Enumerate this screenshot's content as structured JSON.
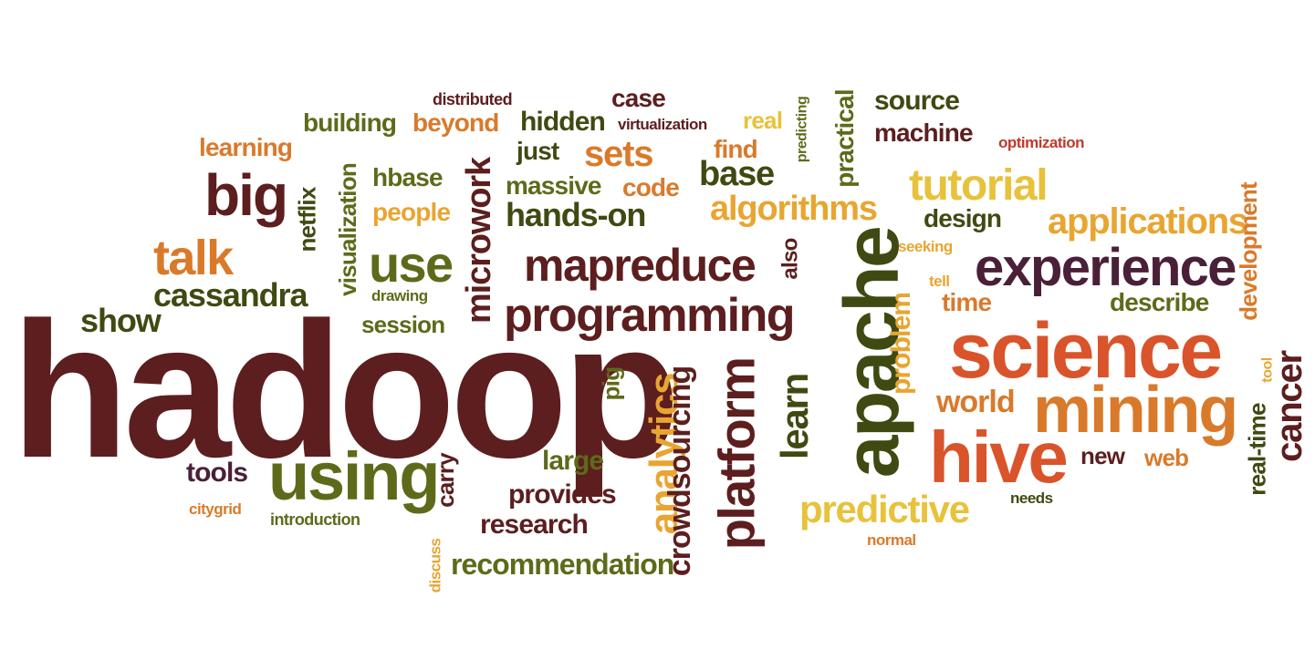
{
  "colors": {
    "maroon": "#5c1e1e",
    "plum": "#4a2038",
    "olive": "#5e6a1a",
    "darkolive": "#3f4a12",
    "orange": "#d97a2b",
    "amber": "#e8a531",
    "gold": "#e7c23a",
    "rust": "#d9542a",
    "red": "#c0392b"
  },
  "words": [
    {
      "text": "hadoop",
      "color": "maroon"
    },
    {
      "text": "science",
      "color": "rust"
    },
    {
      "text": "apache",
      "color": "darkolive"
    },
    {
      "text": "experience",
      "color": "plum"
    },
    {
      "text": "mining",
      "color": "orange"
    },
    {
      "text": "hive",
      "color": "rust"
    },
    {
      "text": "using",
      "color": "olive"
    },
    {
      "text": "programming",
      "color": "maroon"
    },
    {
      "text": "mapreduce",
      "color": "maroon"
    },
    {
      "text": "big",
      "color": "maroon"
    },
    {
      "text": "talk",
      "color": "orange"
    },
    {
      "text": "use",
      "color": "olive"
    },
    {
      "text": "tutorial",
      "color": "gold"
    },
    {
      "text": "platform",
      "color": "maroon"
    },
    {
      "text": "analytics",
      "color": "amber"
    },
    {
      "text": "crowdsourcing",
      "color": "maroon"
    },
    {
      "text": "applications",
      "color": "amber"
    },
    {
      "text": "predictive",
      "color": "gold"
    },
    {
      "text": "algorithms",
      "color": "amber"
    },
    {
      "text": "hands-on",
      "color": "darkolive"
    },
    {
      "text": "cassandra",
      "color": "darkolive"
    },
    {
      "text": "microwork",
      "color": "maroon"
    },
    {
      "text": "learn",
      "color": "darkolive"
    },
    {
      "text": "sets",
      "color": "orange"
    },
    {
      "text": "base",
      "color": "darkolive"
    },
    {
      "text": "show",
      "color": "darkolive"
    },
    {
      "text": "research",
      "color": "maroon"
    },
    {
      "text": "recommendation",
      "color": "olive"
    },
    {
      "text": "provides",
      "color": "maroon"
    },
    {
      "text": "large",
      "color": "olive"
    },
    {
      "text": "tools",
      "color": "plum"
    },
    {
      "text": "world",
      "color": "orange"
    },
    {
      "text": "problem",
      "color": "amber"
    },
    {
      "text": "cancer",
      "color": "maroon"
    },
    {
      "text": "development",
      "color": "orange"
    },
    {
      "text": "real-time",
      "color": "darkolive"
    },
    {
      "text": "building",
      "color": "olive"
    },
    {
      "text": "beyond",
      "color": "orange"
    },
    {
      "text": "hidden",
      "color": "darkolive"
    },
    {
      "text": "learning",
      "color": "orange"
    },
    {
      "text": "machine",
      "color": "maroon"
    },
    {
      "text": "source",
      "color": "darkolive"
    },
    {
      "text": "case",
      "color": "maroon"
    },
    {
      "text": "massive",
      "color": "olive"
    },
    {
      "text": "code",
      "color": "orange"
    },
    {
      "text": "people",
      "color": "amber"
    },
    {
      "text": "hbase",
      "color": "olive"
    },
    {
      "text": "design",
      "color": "darkolive"
    },
    {
      "text": "describe",
      "color": "olive"
    },
    {
      "text": "time",
      "color": "orange"
    },
    {
      "text": "session",
      "color": "olive"
    },
    {
      "text": "visualization",
      "color": "olive"
    },
    {
      "text": "netflix",
      "color": "darkolive"
    },
    {
      "text": "practical",
      "color": "olive"
    },
    {
      "text": "just",
      "color": "darkolive"
    },
    {
      "text": "find",
      "color": "orange"
    },
    {
      "text": "real",
      "color": "gold"
    },
    {
      "text": "carry",
      "color": "maroon"
    },
    {
      "text": "web",
      "color": "orange"
    },
    {
      "text": "new",
      "color": "maroon"
    },
    {
      "text": "pig",
      "color": "olive"
    },
    {
      "text": "also",
      "color": "maroon"
    },
    {
      "text": "introduction",
      "color": "olive"
    },
    {
      "text": "citygrid",
      "color": "orange"
    },
    {
      "text": "discuss",
      "color": "amber"
    },
    {
      "text": "distributed",
      "color": "maroon"
    },
    {
      "text": "virtualization",
      "color": "maroon"
    },
    {
      "text": "predicting",
      "color": "olive"
    },
    {
      "text": "optimization",
      "color": "red"
    },
    {
      "text": "seeking",
      "color": "amber"
    },
    {
      "text": "tell",
      "color": "amber"
    },
    {
      "text": "drawing",
      "color": "olive"
    },
    {
      "text": "needs",
      "color": "darkolive"
    },
    {
      "text": "normal",
      "color": "orange"
    },
    {
      "text": "tool",
      "color": "amber"
    }
  ]
}
